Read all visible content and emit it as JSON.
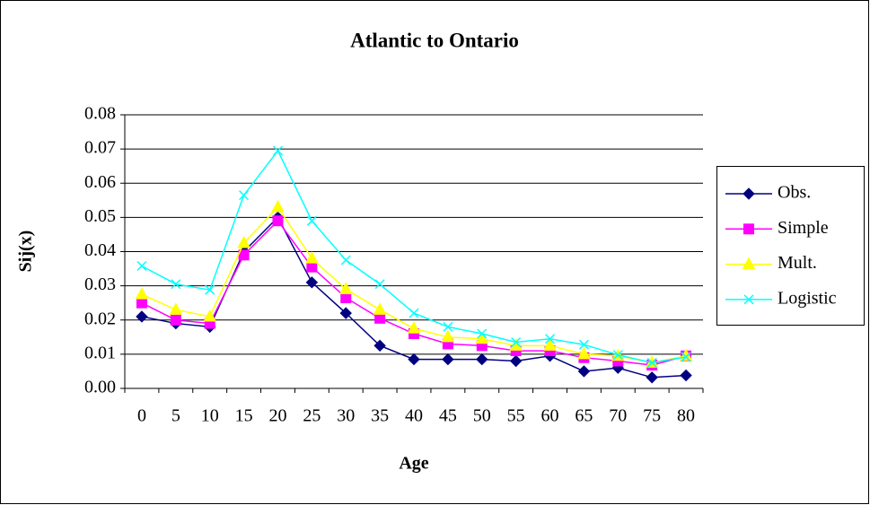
{
  "chart_data": {
    "type": "line",
    "title": "Atlantic to Ontario",
    "x_label": "Age",
    "y_label": "Sij(x)",
    "categories": [
      "0",
      "5",
      "10",
      "15",
      "20",
      "25",
      "30",
      "35",
      "40",
      "45",
      "50",
      "55",
      "60",
      "65",
      "70",
      "75",
      "80"
    ],
    "ylim": [
      0,
      0.08
    ],
    "yticks": [
      {
        "value": 0,
        "label": "0.00"
      },
      0.01,
      0.02,
      0.03,
      0.04,
      0.05,
      0.06,
      0.07,
      0.08
    ],
    "grid": true,
    "legend": "right",
    "series": [
      {
        "name": "Obs.",
        "color": "#000080",
        "marker": "diamond",
        "values": [
          0.021,
          0.019,
          0.018,
          0.04,
          0.05,
          0.031,
          0.022,
          0.0125,
          0.0085,
          0.0085,
          0.0085,
          0.008,
          0.0095,
          0.005,
          0.006,
          0.0032,
          0.0038
        ]
      },
      {
        "name": "Simple",
        "color": "#ff00ff",
        "marker": "square",
        "values": [
          0.025,
          0.02,
          0.019,
          0.039,
          0.049,
          0.0355,
          0.0265,
          0.0205,
          0.016,
          0.013,
          0.0125,
          0.011,
          0.011,
          0.009,
          0.008,
          0.0068,
          0.0095
        ]
      },
      {
        "name": "Mult.",
        "color": "#ffff00",
        "marker": "triangle",
        "values": [
          0.0275,
          0.023,
          0.021,
          0.0425,
          0.053,
          0.038,
          0.029,
          0.023,
          0.0175,
          0.015,
          0.0145,
          0.0125,
          0.0125,
          0.01,
          0.0095,
          0.0075,
          0.0095
        ]
      },
      {
        "name": "Logistic",
        "color": "#00ffff",
        "marker": "x",
        "values": [
          0.0358,
          0.0305,
          0.0288,
          0.0565,
          0.0695,
          0.049,
          0.0375,
          0.0305,
          0.022,
          0.018,
          0.016,
          0.0135,
          0.0145,
          0.0128,
          0.0098,
          0.0075,
          0.0092
        ]
      }
    ]
  }
}
